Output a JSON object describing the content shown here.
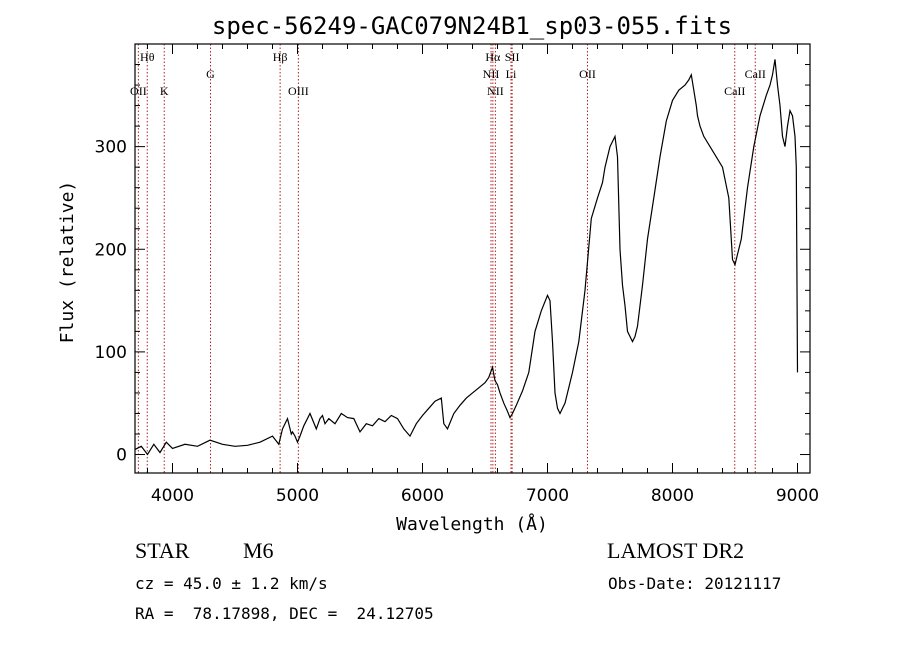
{
  "chart_data": {
    "type": "line",
    "title": "spec-56249-GAC079N24B1_sp03-055.fits",
    "xlabel": "Wavelength (Å)",
    "ylabel": "Flux (relative)",
    "xlim": [
      3700,
      9100
    ],
    "ylim": [
      -18,
      400
    ],
    "xticks": [
      4000,
      5000,
      6000,
      7000,
      8000,
      9000
    ],
    "yticks": [
      0,
      100,
      200,
      300
    ],
    "series": [
      {
        "x": [
          3700,
          3750,
          3800,
          3850,
          3900,
          3950,
          4000,
          4100,
          4200,
          4300,
          4400,
          4500,
          4600,
          4700,
          4800,
          4850,
          4880,
          4900,
          4920,
          4950,
          4960,
          4980,
          5000,
          5020,
          5050,
          5100,
          5150,
          5180,
          5200,
          5220,
          5250,
          5300,
          5350,
          5400,
          5450,
          5500,
          5550,
          5600,
          5650,
          5700,
          5750,
          5800,
          5850,
          5900,
          5950,
          6000,
          6050,
          6100,
          6150,
          6170,
          6200,
          6250,
          6300,
          6350,
          6400,
          6450,
          6500,
          6530,
          6560,
          6580,
          6600,
          6620,
          6650,
          6680,
          6700,
          6720,
          6750,
          6800,
          6850,
          6900,
          6950,
          7000,
          7020,
          7040,
          7060,
          7080,
          7100,
          7120,
          7140,
          7160,
          7200,
          7250,
          7300,
          7350,
          7400,
          7440,
          7460,
          7500,
          7540,
          7560,
          7580,
          7600,
          7620,
          7640,
          7680,
          7700,
          7720,
          7760,
          7800,
          7850,
          7900,
          7950,
          8000,
          8050,
          8100,
          8130,
          8150,
          8170,
          8190,
          8200,
          8220,
          8250,
          8300,
          8350,
          8400,
          8450,
          8480,
          8500,
          8520,
          8550,
          8600,
          8650,
          8700,
          8750,
          8780,
          8800,
          8820,
          8840,
          8860,
          8880,
          8900,
          8920,
          8940,
          8960,
          8980,
          8990,
          9000
        ],
        "y": [
          5,
          8,
          0,
          10,
          2,
          12,
          6,
          10,
          8,
          14,
          10,
          8,
          9,
          12,
          18,
          10,
          25,
          30,
          35,
          20,
          22,
          18,
          12,
          18,
          28,
          40,
          25,
          35,
          38,
          30,
          35,
          30,
          40,
          36,
          35,
          22,
          30,
          28,
          35,
          32,
          38,
          35,
          25,
          18,
          30,
          38,
          45,
          52,
          55,
          30,
          25,
          40,
          48,
          55,
          60,
          65,
          70,
          75,
          85,
          72,
          68,
          60,
          50,
          42,
          36,
          40,
          48,
          62,
          80,
          120,
          140,
          155,
          150,
          110,
          60,
          45,
          40,
          45,
          50,
          60,
          80,
          110,
          160,
          230,
          250,
          265,
          280,
          300,
          310,
          290,
          200,
          165,
          145,
          120,
          110,
          115,
          125,
          165,
          210,
          250,
          290,
          325,
          345,
          355,
          360,
          365,
          370,
          355,
          340,
          330,
          320,
          310,
          300,
          290,
          280,
          250,
          190,
          185,
          195,
          210,
          260,
          300,
          330,
          350,
          360,
          370,
          385,
          360,
          340,
          310,
          300,
          320,
          335,
          330,
          310,
          280,
          80
        ]
      }
    ],
    "lines": [
      {
        "label": "Hθ",
        "x": 3798,
        "row": 0
      },
      {
        "label": "OII",
        "x": 3727,
        "row": 2
      },
      {
        "label": "K",
        "x": 3934,
        "row": 2
      },
      {
        "label": "G",
        "x": 4304,
        "row": 1
      },
      {
        "label": "Hβ",
        "x": 4861,
        "row": 0
      },
      {
        "label": "OIII",
        "x": 5007,
        "row": 2
      },
      {
        "label": "Hα",
        "x": 6563,
        "row": 0
      },
      {
        "label": "SII",
        "x": 6717,
        "row": 0
      },
      {
        "label": "NII",
        "x": 6548,
        "row": 1
      },
      {
        "label": "Li",
        "x": 6708,
        "row": 1
      },
      {
        "label": "NII",
        "x": 6583,
        "row": 2
      },
      {
        "label": "OII",
        "x": 7320,
        "row": 1
      },
      {
        "label": "CaII",
        "x": 8498,
        "row": 2
      },
      {
        "label": "CaII",
        "x": 8662,
        "row": 1
      }
    ]
  },
  "footer": {
    "object_class": "STAR",
    "subclass": "M6",
    "redshift": "cz = 45.0 ± 1.2 km/s",
    "coords": "RA =  78.17898, DEC =  24.12705",
    "survey": "LAMOST DR2",
    "obs_date": "Obs-Date: 20121117"
  },
  "colors": {
    "line": "#000000",
    "marker": "#b22222",
    "axis": "#000000"
  }
}
